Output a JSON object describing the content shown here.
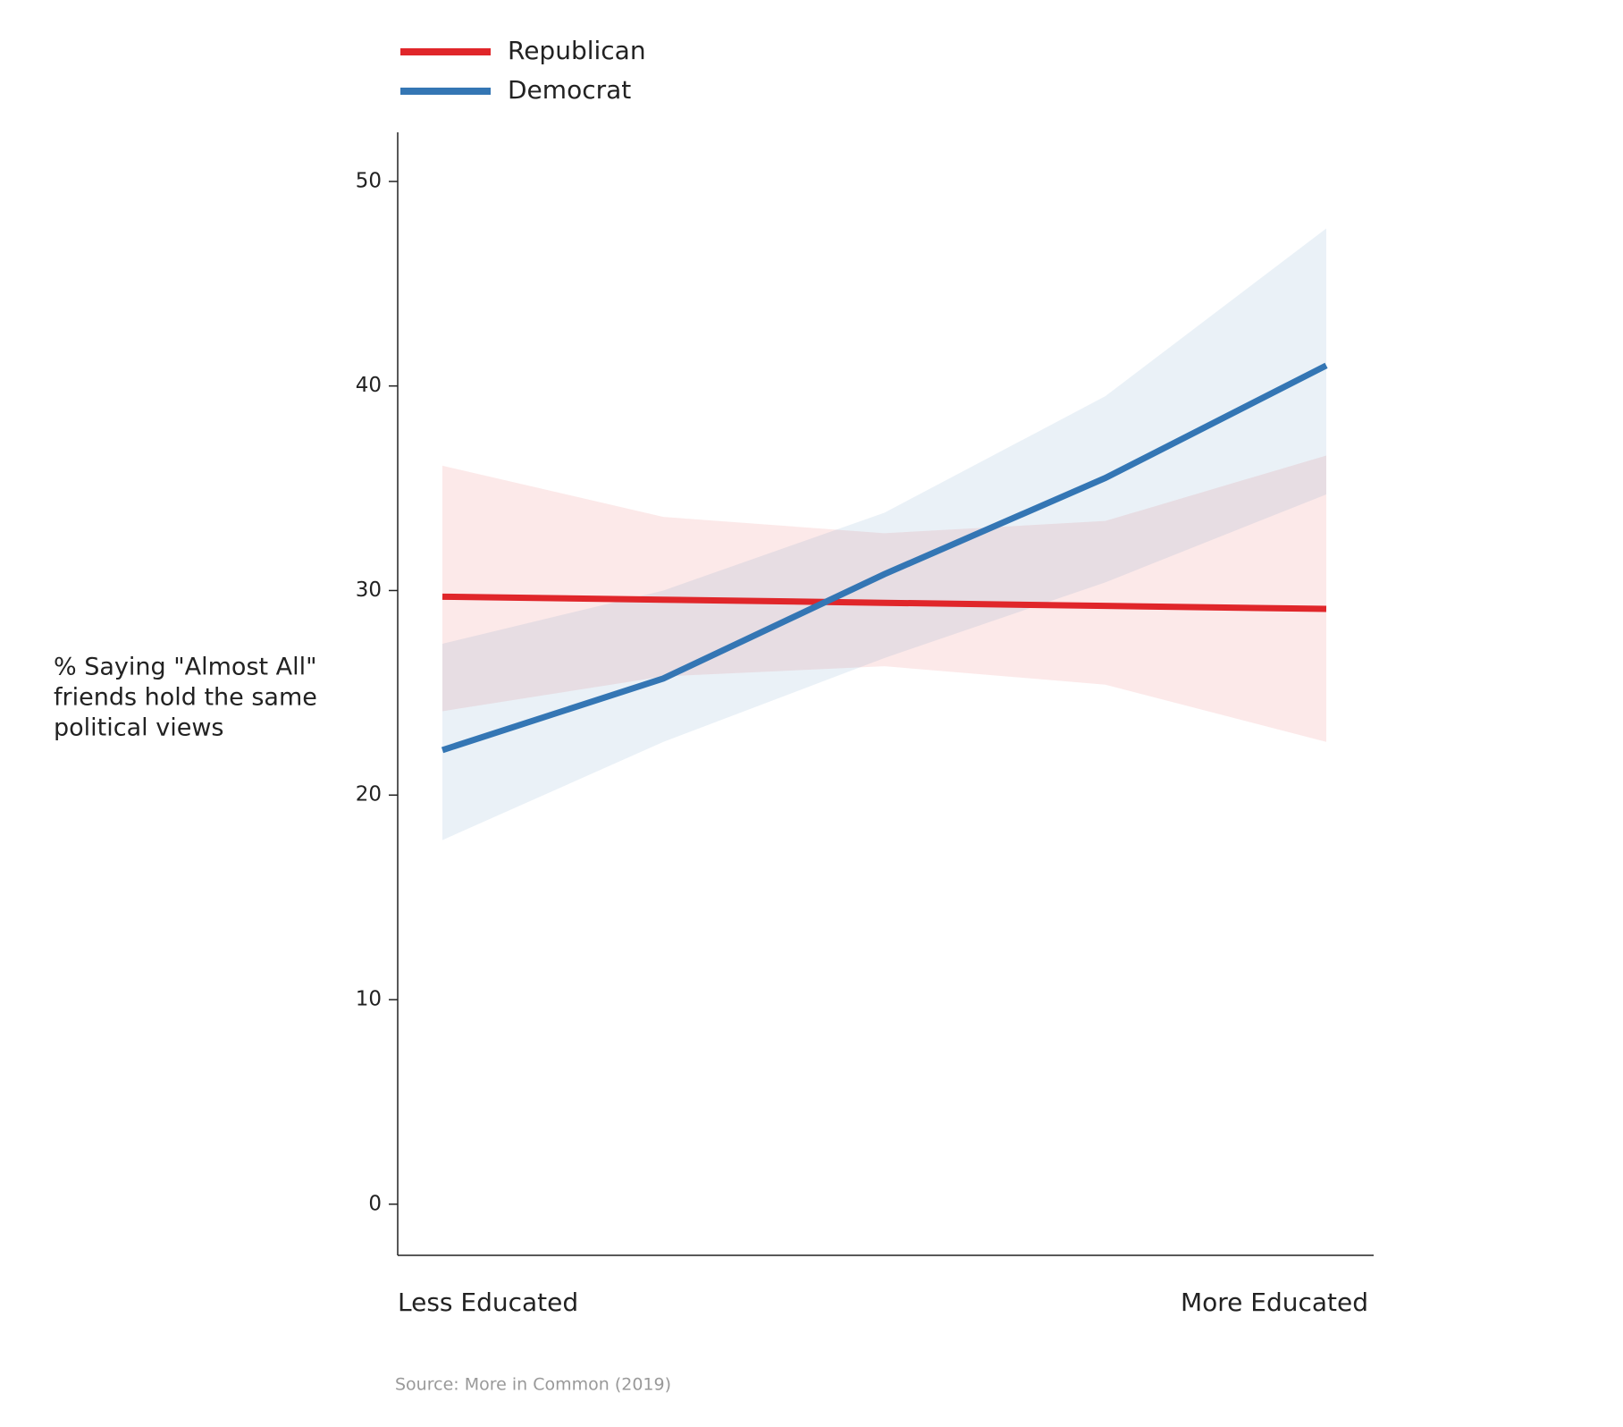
{
  "chart_data": {
    "type": "line",
    "y_label": [
      "% Saying \"Almost All\"",
      "friends hold the same",
      "political views"
    ],
    "source": "Source: More in Common (2019)",
    "categories": [
      "Less Educated",
      null,
      null,
      null,
      "More Educated"
    ],
    "series": [
      {
        "name": "Republican",
        "color": "#e0262a",
        "values": [
          29.7,
          29.55,
          29.4,
          29.25,
          29.1
        ],
        "lower": [
          24.1,
          25.8,
          26.3,
          25.4,
          22.6
        ],
        "upper": [
          36.1,
          33.6,
          32.8,
          33.4,
          36.6
        ]
      },
      {
        "name": "Democrat",
        "color": "#3476b4",
        "values": [
          22.2,
          25.7,
          30.8,
          35.5,
          41.0
        ],
        "lower": [
          17.8,
          22.6,
          26.7,
          30.4,
          34.7
        ],
        "upper": [
          27.4,
          30.0,
          33.8,
          39.5,
          47.7
        ]
      }
    ],
    "ylim": [
      -2.5,
      52.4
    ],
    "yticks": [
      0,
      10,
      20,
      30,
      40,
      50
    ]
  }
}
